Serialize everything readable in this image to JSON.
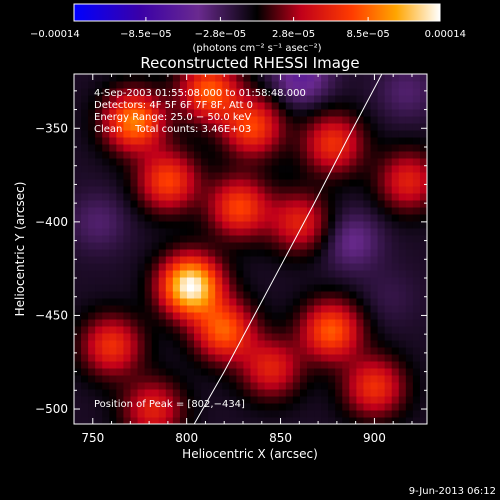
{
  "chart_data": {
    "type": "heatmap",
    "title": "Reconstructed RHESSI Image",
    "xlabel": "Heliocentric X (arcsec)",
    "ylabel": "Heliocentric Y (arcsec)",
    "xlim": [
      740,
      928
    ],
    "ylim": [
      -508,
      -321
    ],
    "x_ticks": [
      750,
      800,
      850,
      900
    ],
    "y_ticks": [
      -350,
      -400,
      -450,
      -500
    ],
    "x_tick_labels": [
      "750",
      "800",
      "850",
      "900"
    ],
    "y_tick_labels": [
      "−350",
      "−400",
      "−450",
      "−500"
    ],
    "colorbar": {
      "tick_values": [
        -0.00014,
        -8.5e-05,
        -2.8e-05,
        2.8e-05,
        8.5e-05,
        0.00014
      ],
      "tick_labels": [
        "−0.00014",
        "−8.5e−05",
        "−2.8e−05",
        "2.8e−05",
        "8.5e−05",
        "0.00014"
      ],
      "unit_label": "(photons cm⁻² s⁻¹ asec⁻²)",
      "colors": [
        "#0000ff",
        "#3a00a8",
        "#6a2a8f",
        "#000000",
        "#c0001a",
        "#ff3c00",
        "#ffa500",
        "#ffffff"
      ]
    },
    "annotations": [
      "4-Sep-2003 01:55:08.000 to 01:58:48.000",
      "Detectors: 4F 5F 6F 7F 8F, Att 0",
      "Energy Range: 25.0 − 50.0 keV",
      "Clean    Total counts: 3.46E+03"
    ],
    "peak_label": "Position of Peak = [802,−434]",
    "peak": [
      802,
      -434
    ],
    "limb_curve": [
      [
        804,
        -508
      ],
      [
        820,
        -480
      ],
      [
        836,
        -450
      ],
      [
        852,
        -420
      ],
      [
        868,
        -390
      ],
      [
        886,
        -355
      ],
      [
        904,
        -321
      ]
    ],
    "sources": [
      {
        "x": 802,
        "y": -434,
        "value": 0.00014
      },
      {
        "x": 772,
        "y": -346,
        "value": 8.5e-05
      },
      {
        "x": 812,
        "y": -330,
        "value": 7e-05
      },
      {
        "x": 835,
        "y": -349,
        "value": 6e-05
      },
      {
        "x": 861,
        "y": -322,
        "value": -7e-05
      },
      {
        "x": 878,
        "y": -358,
        "value": 5e-05
      },
      {
        "x": 790,
        "y": -378,
        "value": 6e-05
      },
      {
        "x": 828,
        "y": -392,
        "value": 6e-05
      },
      {
        "x": 753,
        "y": -400,
        "value": -5e-05
      },
      {
        "x": 860,
        "y": -400,
        "value": 4e-05
      },
      {
        "x": 888,
        "y": -410,
        "value": -6e-05
      },
      {
        "x": 918,
        "y": -378,
        "value": 4e-05
      },
      {
        "x": 820,
        "y": -458,
        "value": 7e-05
      },
      {
        "x": 877,
        "y": -458,
        "value": 7e-05
      },
      {
        "x": 760,
        "y": -466,
        "value": 5e-05
      },
      {
        "x": 845,
        "y": -478,
        "value": 4e-05
      },
      {
        "x": 900,
        "y": -488,
        "value": 5e-05
      },
      {
        "x": 782,
        "y": -500,
        "value": 4e-05
      },
      {
        "x": 908,
        "y": -440,
        "value": -4e-05
      },
      {
        "x": 917,
        "y": -330,
        "value": -5e-05
      }
    ]
  },
  "footer_timestamp": "9-Jun-2013 06:12"
}
